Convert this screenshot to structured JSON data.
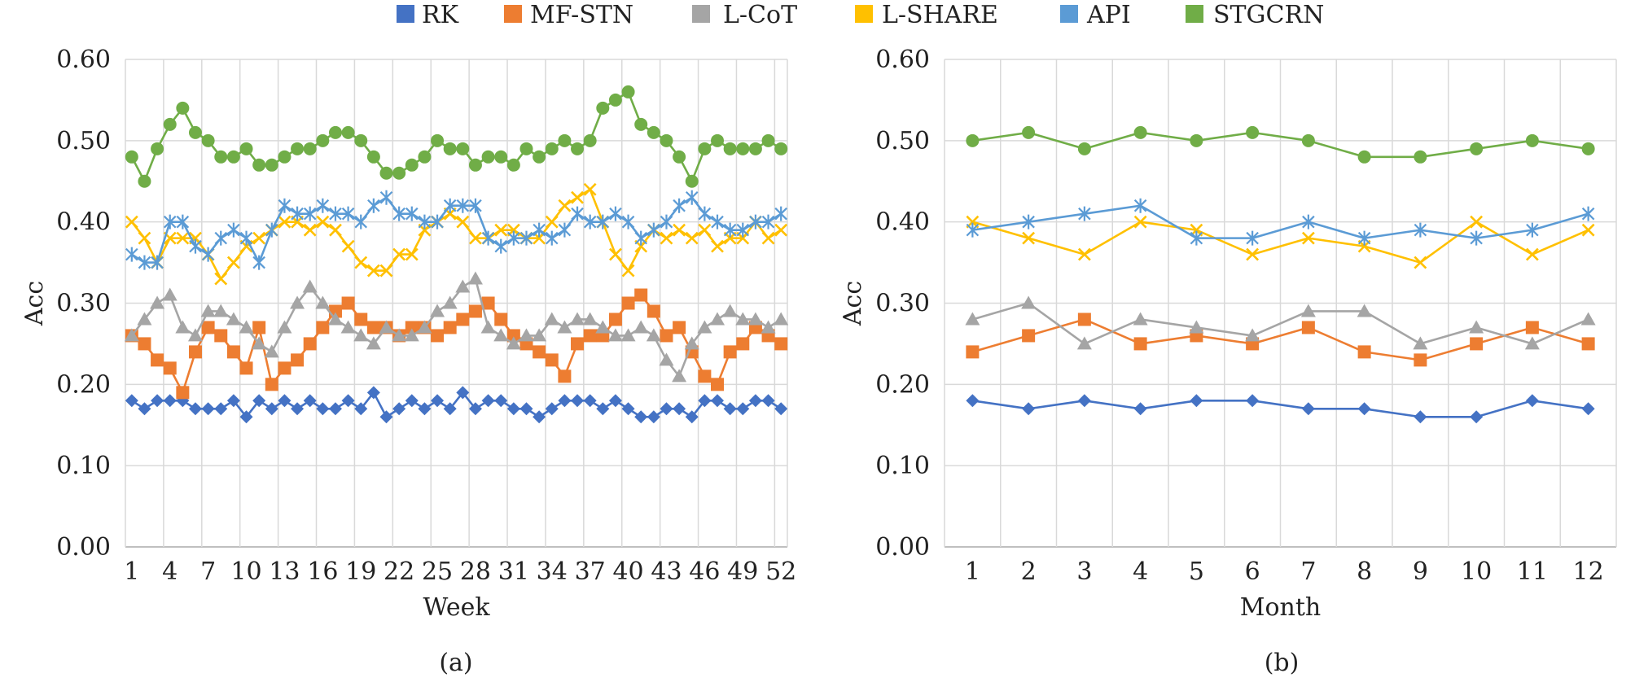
{
  "legend": [
    {
      "name": "RK",
      "color": "#4472C4",
      "marker": "diamond"
    },
    {
      "name": "MF-STN",
      "color": "#ED7D31",
      "marker": "square"
    },
    {
      "name": "L-CoT",
      "color": "#A5A5A5",
      "marker": "triangle"
    },
    {
      "name": "L-SHARE",
      "color": "#FFC000",
      "marker": "x"
    },
    {
      "name": "API",
      "color": "#5B9BD5",
      "marker": "asterisk"
    },
    {
      "name": "STGCRN",
      "color": "#70AD47",
      "marker": "circle"
    }
  ],
  "chart_data": [
    {
      "type": "line",
      "caption": "(a)",
      "xlabel": "Week",
      "ylabel": "Acc",
      "ylim": [
        0,
        0.6
      ],
      "yticks": [
        "0.00",
        "0.10",
        "0.20",
        "0.30",
        "0.40",
        "0.50",
        "0.60"
      ],
      "xticks": [
        "1",
        "4",
        "7",
        "10",
        "13",
        "16",
        "19",
        "22",
        "25",
        "28",
        "31",
        "34",
        "37",
        "40",
        "43",
        "46",
        "49",
        "52"
      ],
      "x_count": 52,
      "grid": true,
      "series": [
        {
          "name": "RK",
          "values": [
            0.18,
            0.17,
            0.18,
            0.18,
            0.18,
            0.17,
            0.17,
            0.17,
            0.18,
            0.16,
            0.18,
            0.17,
            0.18,
            0.17,
            0.18,
            0.17,
            0.17,
            0.18,
            0.17,
            0.19,
            0.16,
            0.17,
            0.18,
            0.17,
            0.18,
            0.17,
            0.19,
            0.17,
            0.18,
            0.18,
            0.17,
            0.17,
            0.16,
            0.17,
            0.18,
            0.18,
            0.18,
            0.17,
            0.18,
            0.17,
            0.16,
            0.16,
            0.17,
            0.17,
            0.16,
            0.18,
            0.18,
            0.17,
            0.17,
            0.18,
            0.18,
            0.17
          ]
        },
        {
          "name": "MF-STN",
          "values": [
            0.26,
            0.25,
            0.23,
            0.22,
            0.19,
            0.24,
            0.27,
            0.26,
            0.24,
            0.22,
            0.27,
            0.2,
            0.22,
            0.23,
            0.25,
            0.27,
            0.29,
            0.3,
            0.28,
            0.27,
            0.27,
            0.26,
            0.27,
            0.27,
            0.26,
            0.27,
            0.28,
            0.29,
            0.3,
            0.28,
            0.26,
            0.25,
            0.24,
            0.23,
            0.21,
            0.25,
            0.26,
            0.26,
            0.28,
            0.3,
            0.31,
            0.29,
            0.26,
            0.27,
            0.24,
            0.21,
            0.2,
            0.24,
            0.25,
            0.27,
            0.26,
            0.25
          ]
        },
        {
          "name": "L-CoT",
          "values": [
            0.26,
            0.28,
            0.3,
            0.31,
            0.27,
            0.26,
            0.29,
            0.29,
            0.28,
            0.27,
            0.25,
            0.24,
            0.27,
            0.3,
            0.32,
            0.3,
            0.28,
            0.27,
            0.26,
            0.25,
            0.27,
            0.26,
            0.26,
            0.27,
            0.29,
            0.3,
            0.32,
            0.33,
            0.27,
            0.26,
            0.25,
            0.26,
            0.26,
            0.28,
            0.27,
            0.28,
            0.28,
            0.27,
            0.26,
            0.26,
            0.27,
            0.26,
            0.23,
            0.21,
            0.25,
            0.27,
            0.28,
            0.29,
            0.28,
            0.28,
            0.27,
            0.28
          ]
        },
        {
          "name": "L-SHARE",
          "values": [
            0.4,
            0.38,
            0.35,
            0.38,
            0.38,
            0.38,
            0.36,
            0.33,
            0.35,
            0.37,
            0.38,
            0.39,
            0.4,
            0.4,
            0.39,
            0.4,
            0.39,
            0.37,
            0.35,
            0.34,
            0.34,
            0.36,
            0.36,
            0.39,
            0.4,
            0.41,
            0.4,
            0.38,
            0.38,
            0.39,
            0.39,
            0.38,
            0.38,
            0.4,
            0.42,
            0.43,
            0.44,
            0.4,
            0.36,
            0.34,
            0.37,
            0.39,
            0.38,
            0.39,
            0.38,
            0.39,
            0.37,
            0.38,
            0.38,
            0.4,
            0.38,
            0.39
          ]
        },
        {
          "name": "API",
          "values": [
            0.36,
            0.35,
            0.35,
            0.4,
            0.4,
            0.37,
            0.36,
            0.38,
            0.39,
            0.38,
            0.35,
            0.39,
            0.42,
            0.41,
            0.41,
            0.42,
            0.41,
            0.41,
            0.4,
            0.42,
            0.43,
            0.41,
            0.41,
            0.4,
            0.4,
            0.42,
            0.42,
            0.42,
            0.38,
            0.37,
            0.38,
            0.38,
            0.39,
            0.38,
            0.39,
            0.41,
            0.4,
            0.4,
            0.41,
            0.4,
            0.38,
            0.39,
            0.4,
            0.42,
            0.43,
            0.41,
            0.4,
            0.39,
            0.39,
            0.4,
            0.4,
            0.41
          ]
        },
        {
          "name": "STGCRN",
          "values": [
            0.48,
            0.45,
            0.49,
            0.52,
            0.54,
            0.51,
            0.5,
            0.48,
            0.48,
            0.49,
            0.47,
            0.47,
            0.48,
            0.49,
            0.49,
            0.5,
            0.51,
            0.51,
            0.5,
            0.48,
            0.46,
            0.46,
            0.47,
            0.48,
            0.5,
            0.49,
            0.49,
            0.47,
            0.48,
            0.48,
            0.47,
            0.49,
            0.48,
            0.49,
            0.5,
            0.49,
            0.5,
            0.54,
            0.55,
            0.56,
            0.52,
            0.51,
            0.5,
            0.48,
            0.45,
            0.49,
            0.5,
            0.49,
            0.49,
            0.49,
            0.5,
            0.49
          ]
        }
      ]
    },
    {
      "type": "line",
      "caption": "(b)",
      "xlabel": "Month",
      "ylabel": "Acc",
      "ylim": [
        0,
        0.6
      ],
      "yticks": [
        "0.00",
        "0.10",
        "0.20",
        "0.30",
        "0.40",
        "0.50",
        "0.60"
      ],
      "xticks": [
        "1",
        "2",
        "3",
        "4",
        "5",
        "6",
        "7",
        "8",
        "9",
        "10",
        "11",
        "12"
      ],
      "x_count": 12,
      "grid": true,
      "series": [
        {
          "name": "RK",
          "values": [
            0.18,
            0.17,
            0.18,
            0.17,
            0.18,
            0.18,
            0.17,
            0.17,
            0.16,
            0.16,
            0.18,
            0.17
          ]
        },
        {
          "name": "MF-STN",
          "values": [
            0.24,
            0.26,
            0.28,
            0.25,
            0.26,
            0.25,
            0.27,
            0.24,
            0.23,
            0.25,
            0.27,
            0.25
          ]
        },
        {
          "name": "L-CoT",
          "values": [
            0.28,
            0.3,
            0.25,
            0.28,
            0.27,
            0.26,
            0.29,
            0.29,
            0.25,
            0.27,
            0.25,
            0.28
          ]
        },
        {
          "name": "L-SHARE",
          "values": [
            0.4,
            0.38,
            0.36,
            0.4,
            0.39,
            0.36,
            0.38,
            0.37,
            0.35,
            0.4,
            0.36,
            0.39
          ]
        },
        {
          "name": "API",
          "values": [
            0.39,
            0.4,
            0.41,
            0.42,
            0.38,
            0.38,
            0.4,
            0.38,
            0.39,
            0.38,
            0.39,
            0.41
          ]
        },
        {
          "name": "STGCRN",
          "values": [
            0.5,
            0.51,
            0.49,
            0.51,
            0.5,
            0.51,
            0.5,
            0.48,
            0.48,
            0.49,
            0.5,
            0.49
          ]
        }
      ]
    }
  ]
}
